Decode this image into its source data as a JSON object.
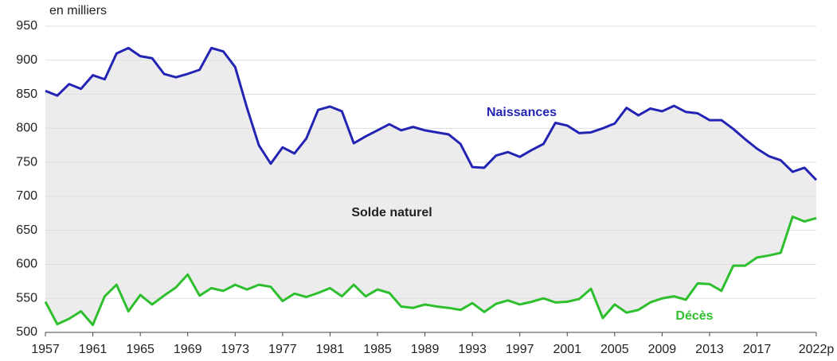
{
  "chart_data": {
    "type": "line",
    "y_label": "en milliers",
    "annotation": "Solde naturel",
    "x": [
      1957,
      1958,
      1959,
      1960,
      1961,
      1962,
      1963,
      1964,
      1965,
      1966,
      1967,
      1968,
      1969,
      1970,
      1971,
      1972,
      1973,
      1974,
      1975,
      1976,
      1977,
      1978,
      1979,
      1980,
      1981,
      1982,
      1983,
      1984,
      1985,
      1986,
      1987,
      1988,
      1989,
      1990,
      1991,
      1992,
      1993,
      1994,
      1995,
      1996,
      1997,
      1998,
      1999,
      2000,
      2001,
      2002,
      2003,
      2004,
      2005,
      2006,
      2007,
      2008,
      2009,
      2010,
      2011,
      2012,
      2013,
      2014,
      2015,
      2016,
      2017,
      2018,
      2019,
      2020,
      2021,
      2022
    ],
    "series": [
      {
        "name": "Naissances",
        "color": "#2424b4",
        "values": [
          855,
          848,
          865,
          858,
          878,
          872,
          910,
          918,
          906,
          903,
          880,
          875,
          880,
          886,
          918,
          913,
          890,
          830,
          775,
          748,
          772,
          763,
          785,
          827,
          832,
          825,
          778,
          788,
          797,
          806,
          797,
          802,
          797,
          794,
          791,
          777,
          743,
          742,
          760,
          765,
          758,
          768,
          777,
          808,
          804,
          793,
          794,
          800,
          807,
          830,
          819,
          829,
          825,
          833,
          824,
          822,
          812,
          812,
          799,
          784,
          770,
          759,
          753,
          736,
          742,
          724
        ]
      },
      {
        "name": "Décès",
        "color": "#2ebf2e",
        "values": [
          545,
          512,
          520,
          531,
          511,
          553,
          570,
          531,
          555,
          541,
          554,
          566,
          585,
          554,
          565,
          561,
          570,
          563,
          570,
          567,
          546,
          557,
          552,
          558,
          565,
          553,
          570,
          553,
          563,
          558,
          538,
          536,
          541,
          538,
          536,
          533,
          543,
          530,
          542,
          547,
          541,
          545,
          550,
          544,
          545,
          549,
          564,
          521,
          541,
          529,
          533,
          544,
          550,
          553,
          548,
          572,
          571,
          561,
          598,
          598,
          610,
          613,
          617,
          670,
          663,
          668
        ]
      }
    ],
    "area_color": "#ececec",
    "xlim": [
      1957,
      2022
    ],
    "xticks": [
      1957,
      1961,
      1965,
      1969,
      1973,
      1977,
      1981,
      1985,
      1989,
      1993,
      1997,
      2001,
      2005,
      2009,
      2013,
      2017,
      {
        "value": 2022,
        "label": "2022p"
      }
    ],
    "ylim": [
      500,
      950
    ],
    "yticks": [
      500,
      550,
      600,
      650,
      700,
      750,
      800,
      850,
      900,
      950
    ],
    "grid": true
  }
}
